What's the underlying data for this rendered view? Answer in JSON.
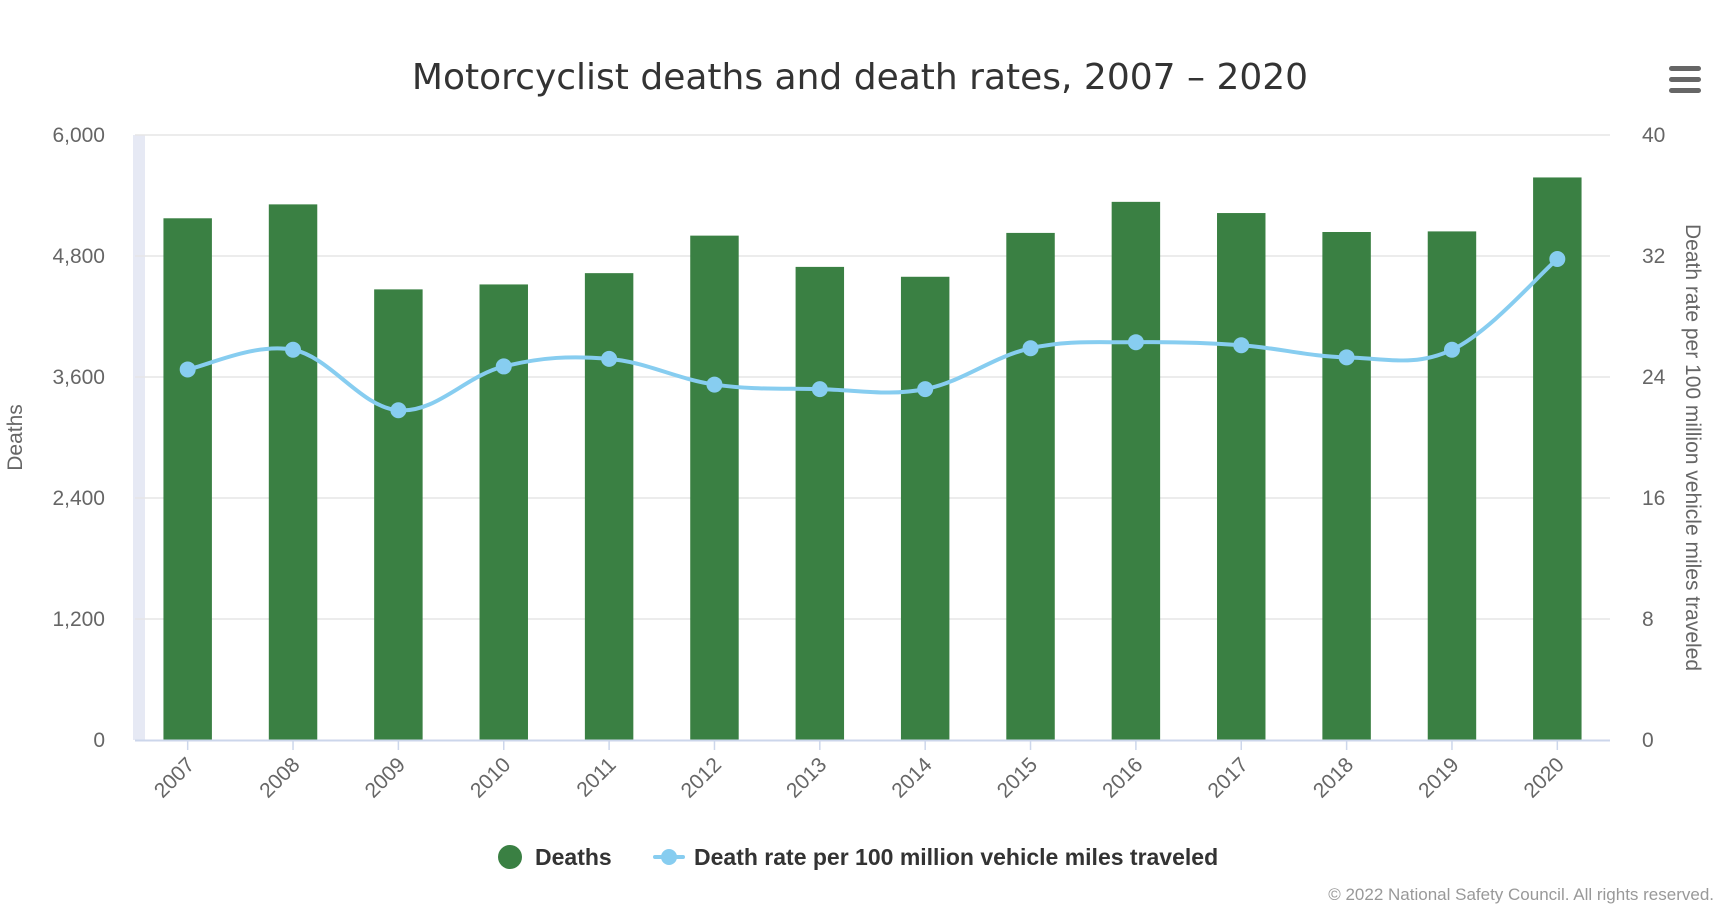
{
  "colors": {
    "bar": "#3a8043",
    "line": "#87cdf0",
    "grid": "#e6e6e6",
    "axis_band": "#e6e9f4",
    "text": "#333333",
    "tick": "#666666",
    "credits": "#999999",
    "menu": "#666666"
  },
  "menu": {
    "icon": "hamburger-menu-icon"
  },
  "chart_data": {
    "type": "bar",
    "title": "Motorcyclist deaths and death rates, 2007 – 2020",
    "categories": [
      "2007",
      "2008",
      "2009",
      "2010",
      "2011",
      "2012",
      "2013",
      "2014",
      "2015",
      "2016",
      "2017",
      "2018",
      "2019",
      "2020"
    ],
    "series": [
      {
        "name": "Deaths",
        "type": "bar",
        "axis": "left",
        "values": [
          5174,
          5312,
          4469,
          4518,
          4630,
          5002,
          4692,
          4594,
          5029,
          5337,
          5226,
          5038,
          5044,
          5579
        ]
      },
      {
        "name": "Death rate per 100 million vehicle miles traveled",
        "type": "line",
        "axis": "right",
        "values": [
          24.5,
          25.8,
          21.8,
          24.7,
          25.2,
          23.5,
          23.2,
          23.2,
          25.9,
          26.3,
          26.1,
          25.3,
          25.8,
          31.8
        ]
      }
    ],
    "y_left": {
      "label": "Deaths",
      "ylim": [
        0,
        6000
      ],
      "ticks": [
        0,
        1200,
        2400,
        3600,
        4800,
        6000
      ],
      "tick_labels": [
        "0",
        "1,200",
        "2,400",
        "3,600",
        "4,800",
        "6,000"
      ]
    },
    "y_right": {
      "label": "Death rate per 100 million vehicle miles traveled",
      "ylim": [
        0,
        40
      ],
      "ticks": [
        0,
        8,
        16,
        24,
        32,
        40
      ],
      "tick_labels": [
        "0",
        "8",
        "16",
        "24",
        "32",
        "40"
      ]
    },
    "grid": true,
    "legend": {
      "placement": "bottom-center",
      "entries": [
        "Deaths",
        "Death rate per 100 million vehicle miles traveled"
      ]
    },
    "credits": "© 2022 National Safety Council. All rights reserved."
  }
}
